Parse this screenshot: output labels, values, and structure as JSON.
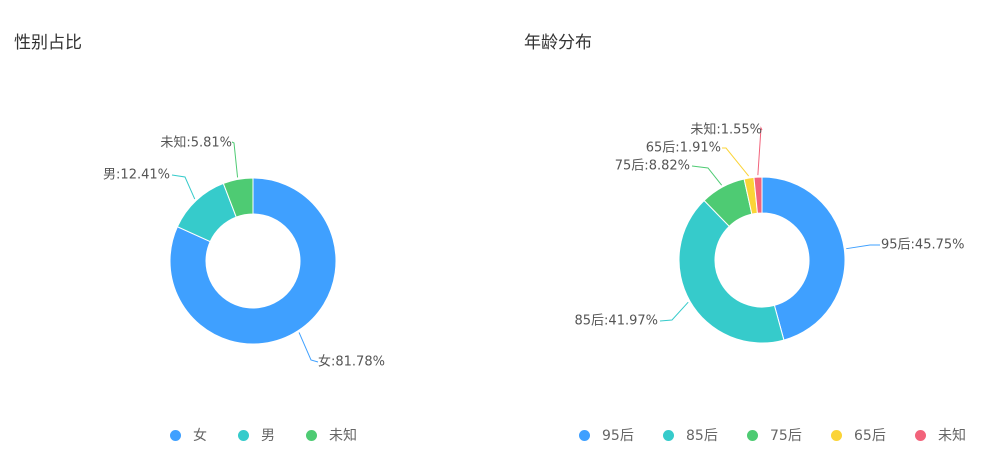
{
  "chart_data": [
    {
      "type": "pie",
      "title": "性别占比",
      "slices": [
        {
          "name": "女",
          "label": "女:81.78%",
          "value": 81.78,
          "color": "#3fa0ff"
        },
        {
          "name": "男",
          "label": "男:12.41%",
          "value": 12.41,
          "color": "#36cbcb"
        },
        {
          "name": "未知",
          "label": "未知:5.81%",
          "value": 5.81,
          "color": "#4ecb73"
        }
      ],
      "legend_position": "bottom",
      "donut": true
    },
    {
      "type": "pie",
      "title": "年龄分布",
      "slices": [
        {
          "name": "95后",
          "label": "95后:45.75%",
          "value": 45.75,
          "color": "#3fa0ff"
        },
        {
          "name": "85后",
          "label": "85后:41.97%",
          "value": 41.97,
          "color": "#36cbcb"
        },
        {
          "name": "75后",
          "label": "75后:8.82%",
          "value": 8.82,
          "color": "#4ecb73"
        },
        {
          "name": "65后",
          "label": "65后:1.91%",
          "value": 1.91,
          "color": "#fbd437"
        },
        {
          "name": "未知",
          "label": "未知:1.55%",
          "value": 1.55,
          "color": "#f2637b"
        }
      ],
      "legend_position": "bottom",
      "donut": true
    }
  ]
}
